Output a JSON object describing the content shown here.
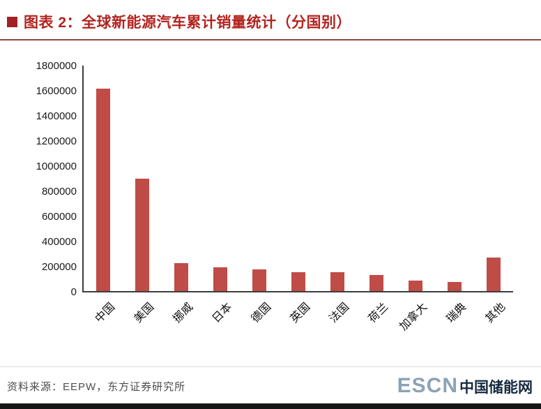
{
  "header": {
    "title": "图表 2：全球新能源汽车累计销量统计（分国别）"
  },
  "chart_data": {
    "type": "bar",
    "title": "全球新能源汽车累计销量统计（分国别）",
    "categories": [
      "中国",
      "美国",
      "挪威",
      "日本",
      "德国",
      "英国",
      "法国",
      "荷兰",
      "加拿大",
      "瑞典",
      "其他"
    ],
    "values": [
      1615000,
      900000,
      225000,
      190000,
      175000,
      152000,
      150000,
      127000,
      83000,
      70000,
      265000
    ],
    "xlabel": "",
    "ylabel": "",
    "ylim": [
      0,
      1800000
    ],
    "ytick_step": 200000,
    "grid": false,
    "legend": false,
    "bar_color": "#bf4c47",
    "axis_color": "#3d3d3d"
  },
  "footer": {
    "source": "资料来源：EEPW，东方证券研究所",
    "logo_en": "ESCN",
    "logo_cn": "中国储能网"
  },
  "colors": {
    "title_text": "#b3231f",
    "title_bullet": "#a32025",
    "title_rule": "#8d4640",
    "bar": "#bf4c47",
    "logo_en": "#8ba3b5",
    "logo_cn": "#16293f"
  }
}
